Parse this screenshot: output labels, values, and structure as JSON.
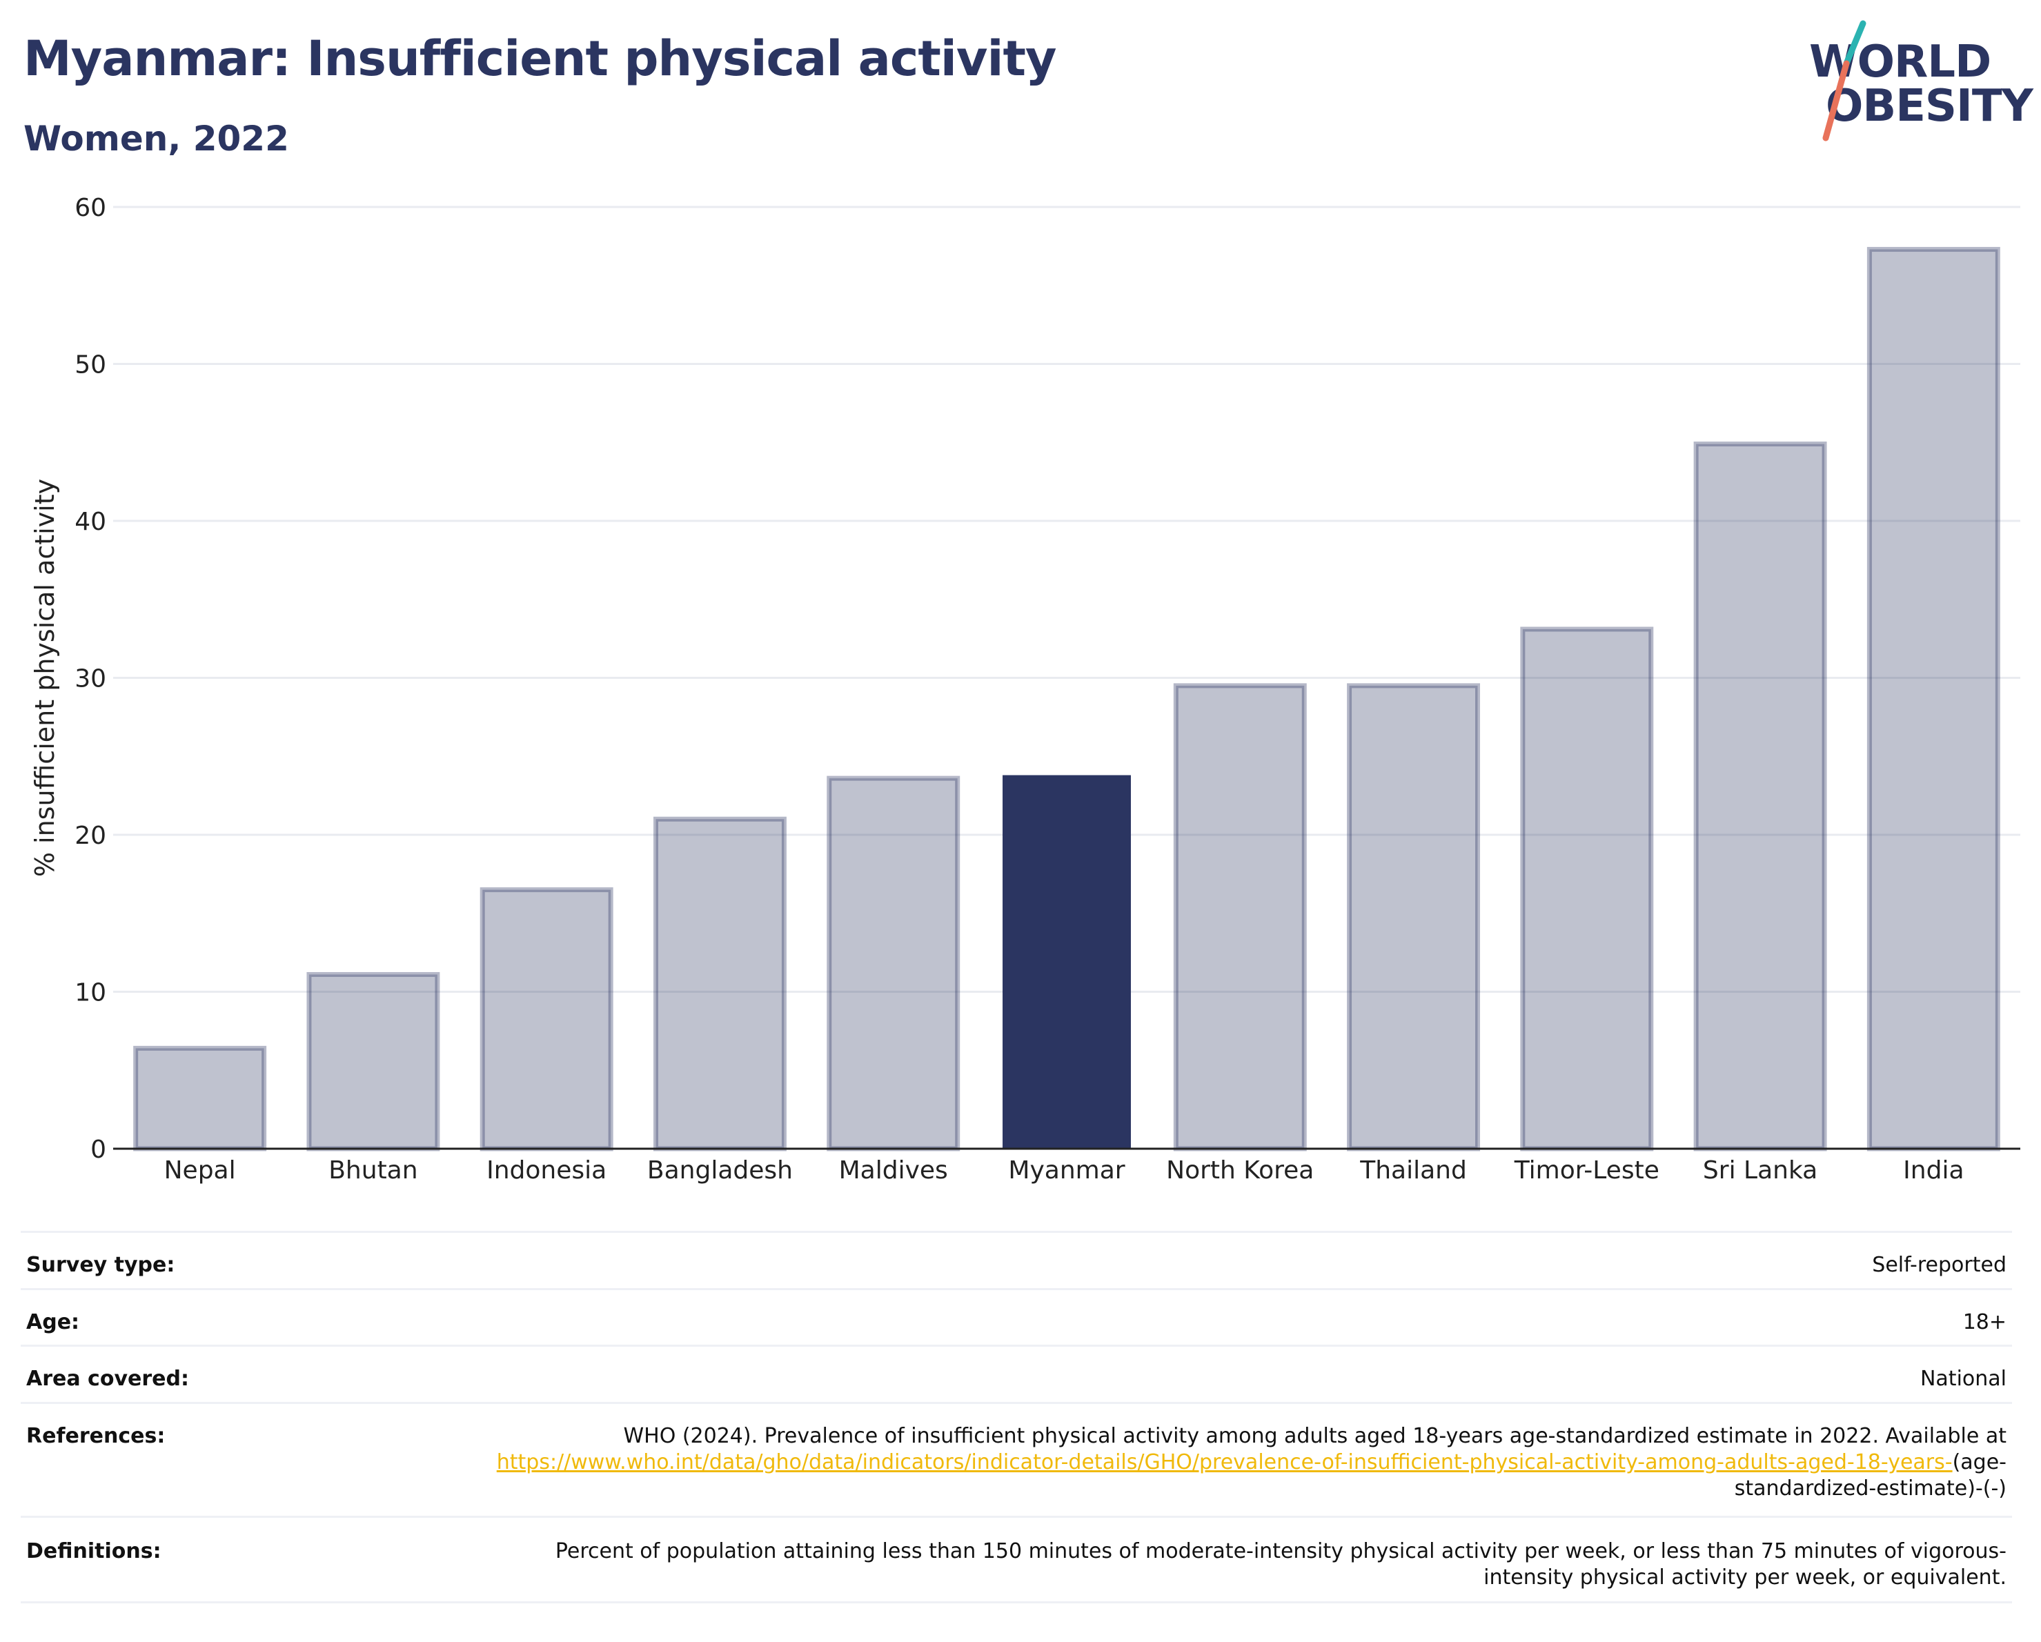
{
  "header": {
    "title": "Myanmar: Insufficient physical activity",
    "subtitle": "Women, 2022"
  },
  "logo": {
    "line1": "WORLD",
    "line2": "OBESITY",
    "accent_colors": [
      "#2bb3b1",
      "#e8725a"
    ]
  },
  "chart_data": {
    "type": "bar",
    "categories": [
      "Nepal",
      "Bhutan",
      "Indonesia",
      "Bangladesh",
      "Maldives",
      "Myanmar",
      "North Korea",
      "Thailand",
      "Timor-Leste",
      "Sri Lanka",
      "India"
    ],
    "values": [
      6.4,
      11.1,
      16.5,
      21.0,
      23.6,
      23.8,
      29.5,
      29.5,
      33.1,
      44.9,
      57.3
    ],
    "highlight": "Myanmar",
    "ylabel": "% insufficient physical activity",
    "ylim": [
      0,
      60
    ],
    "yticks": [
      0,
      10,
      20,
      30,
      40,
      50,
      60
    ],
    "grid": true,
    "colors": {
      "bar": "#2b3561",
      "bar_opacity": 0.3,
      "highlight": "#2b3561"
    }
  },
  "info": {
    "survey_type": {
      "label": "Survey type:",
      "value": "Self-reported"
    },
    "age": {
      "label": "Age:",
      "value": "18+"
    },
    "area": {
      "label": "Area covered:",
      "value": "National"
    },
    "references": {
      "label": "References:",
      "text": "WHO (2024). Prevalence of insufficient physical activity among adults aged 18-years age-standardized estimate in 2022. Available at",
      "link": "https://www.who.int/data/gho/data/indicators/indicator-details/GHO/prevalence-of-insufficient-physical-activity-among-adults-aged-18-years-",
      "suffix": "(age-standardized-estimate)-(-)"
    },
    "definitions": {
      "label": "Definitions:",
      "value": "Percent of population attaining less than 150 minutes of moderate-intensity physical activity per week, or less than 75 minutes of vigorous-intensity physical activity per week, or equivalent."
    }
  }
}
